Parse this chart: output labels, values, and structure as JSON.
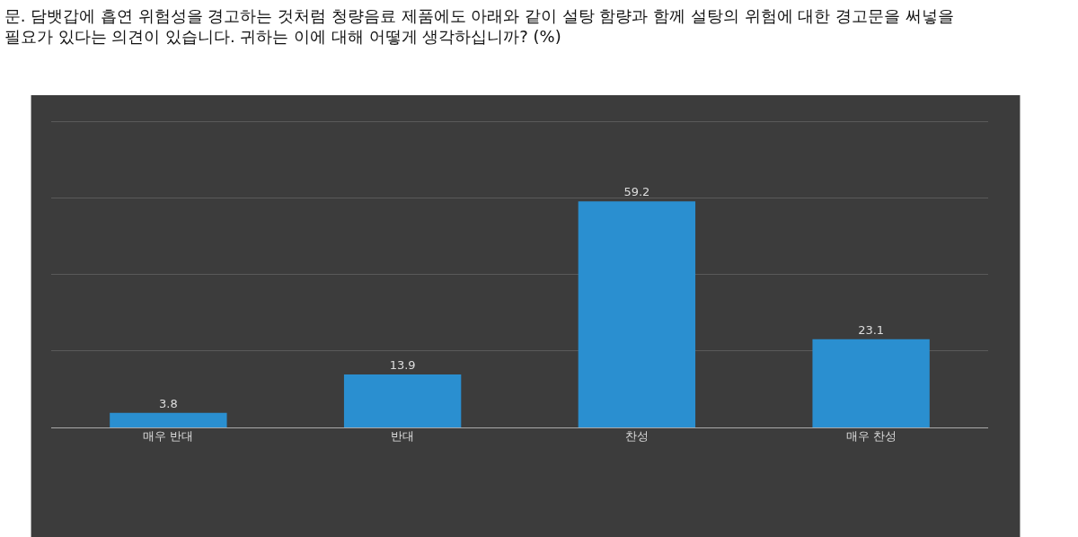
{
  "chart_data": {
    "type": "bar",
    "title": "문. 담뱃갑에 흡연 위험성을 경고하는 것처럼 청량음료 제품에도 아래와 같이 설탕 함량과 함께 설탕의 위험에 대한 경고문을 써넣을 필요가 있다는 의견이 있습니다. 귀하는 이에 대해 어떻게 생각하십니까? (%)",
    "categories": [
      "매우 반대",
      "반대",
      "찬성",
      "매우 찬성"
    ],
    "values": [
      3.8,
      13.9,
      59.2,
      23.1
    ],
    "color": "#2a8fd0",
    "ylim": [
      0,
      87
    ],
    "yticks": [
      {
        "value": 0,
        "label": null
      },
      {
        "value": 20,
        "label": null
      },
      {
        "value": 40,
        "label": null
      },
      {
        "value": 60,
        "label": null
      },
      {
        "value": 80,
        "label": null
      }
    ],
    "grid": "y",
    "tick_labels": "x",
    "data_labels": true
  }
}
